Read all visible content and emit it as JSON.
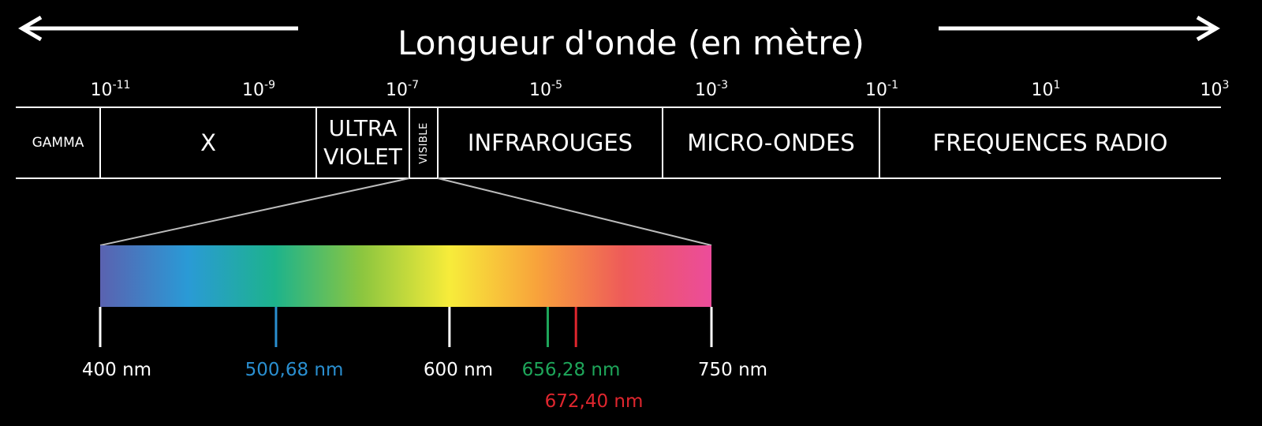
{
  "title": "Longueur d'onde (en mètre)",
  "ticks": [
    {
      "base": "10",
      "exp": "-11"
    },
    {
      "base": "10",
      "exp": "-9"
    },
    {
      "base": "10",
      "exp": "-7"
    },
    {
      "base": "10",
      "exp": "-5"
    },
    {
      "base": "10",
      "exp": "-3"
    },
    {
      "base": "10",
      "exp": "-1"
    },
    {
      "base": "10",
      "exp": "1"
    },
    {
      "base": "10",
      "exp": "3"
    }
  ],
  "bands": [
    {
      "label": "GAMMA"
    },
    {
      "label": "X"
    },
    {
      "label_line1": "ULTRA",
      "label_line2": "VIOLET"
    },
    {
      "label": "VISIBLE"
    },
    {
      "label": "INFRAROUGES"
    },
    {
      "label": "MICRO-ONDES"
    },
    {
      "label": "FREQUENCES RADIO"
    }
  ],
  "visible_range": {
    "min_nm": 400,
    "max_nm": 750,
    "gradient_colors": [
      "#5a62b0",
      "#2a9ad6",
      "#1db38c",
      "#8cc63f",
      "#f7ec3a",
      "#f8a33b",
      "#ee5a5a",
      "#ec4c9b"
    ]
  },
  "markers": [
    {
      "nm": 400,
      "label": "400 nm",
      "color": "#ffffff"
    },
    {
      "nm": 500.68,
      "label": "500,68 nm",
      "color": "#2a8fd0"
    },
    {
      "nm": 600,
      "label": "600 nm",
      "color": "#ffffff"
    },
    {
      "nm": 656.28,
      "label": "656,28 nm",
      "color": "#1ea65a"
    },
    {
      "nm": 672.4,
      "label": "672,40 nm",
      "color": "#e0262e"
    },
    {
      "nm": 750,
      "label": "750 nm",
      "color": "#ffffff"
    }
  ]
}
